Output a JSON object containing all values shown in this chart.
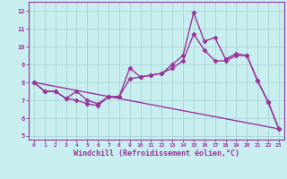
{
  "xlabel": "Windchill (Refroidissement éolien,°C)",
  "bg_color": "#c8eef0",
  "line_color": "#993399",
  "xlim": [
    -0.5,
    23.5
  ],
  "ylim": [
    4.8,
    12.5
  ],
  "xticks": [
    0,
    1,
    2,
    3,
    4,
    5,
    6,
    7,
    8,
    9,
    10,
    11,
    12,
    13,
    14,
    15,
    16,
    17,
    18,
    19,
    20,
    21,
    22,
    23
  ],
  "yticks": [
    5,
    6,
    7,
    8,
    9,
    10,
    11,
    12
  ],
  "series1_x": [
    0,
    1,
    2,
    3,
    4,
    5,
    6,
    7,
    8,
    9,
    10,
    11,
    12,
    13,
    14,
    15,
    16,
    17,
    18,
    19,
    20,
    21,
    22,
    23
  ],
  "series1_y": [
    8.0,
    7.5,
    7.5,
    7.1,
    7.0,
    6.8,
    6.7,
    7.2,
    7.2,
    8.8,
    8.3,
    8.4,
    8.5,
    9.0,
    9.5,
    11.9,
    10.3,
    10.5,
    9.3,
    9.6,
    9.5,
    8.1,
    6.9,
    5.4
  ],
  "series2_x": [
    0,
    1,
    2,
    3,
    4,
    5,
    6,
    7,
    8,
    9,
    10,
    11,
    12,
    13,
    14,
    15,
    16,
    17,
    18,
    19,
    20,
    21,
    22,
    23
  ],
  "series2_y": [
    8.0,
    7.5,
    7.5,
    7.1,
    7.5,
    7.0,
    6.8,
    7.2,
    7.2,
    8.2,
    8.3,
    8.4,
    8.5,
    8.8,
    9.2,
    10.7,
    9.8,
    9.2,
    9.2,
    9.5,
    9.5,
    8.1,
    6.9,
    5.4
  ],
  "series3_x": [
    0,
    23
  ],
  "series3_y": [
    8.0,
    5.4
  ],
  "grid_color": "#aad4d8",
  "marker": "D",
  "markersize": 2.5,
  "linewidth": 1.0
}
